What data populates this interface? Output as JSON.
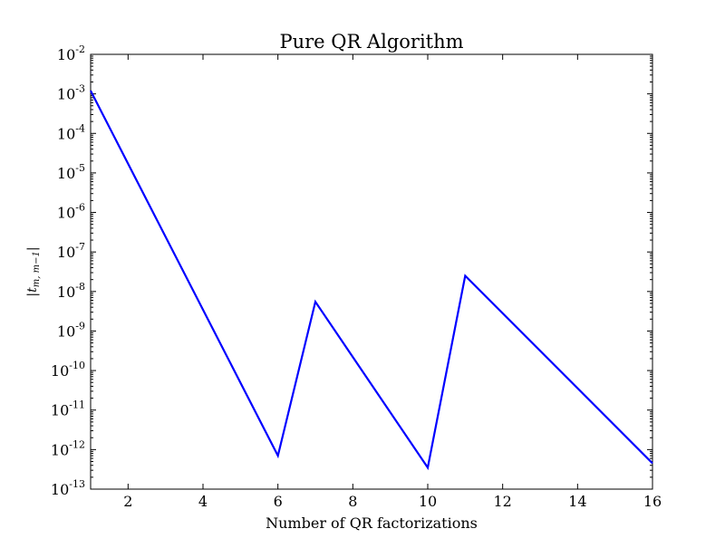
{
  "chart_data": {
    "type": "line",
    "title": "Pure QR Algorithm",
    "xlabel": "Number of QR factorizations",
    "ylabel": "|t_{m,m-1}|",
    "ylabel_parts": {
      "main": "|t",
      "sub": "m, m−1",
      "close": "|"
    },
    "xlim": [
      1,
      16
    ],
    "ylim": [
      1e-13,
      0.01
    ],
    "yscale": "log",
    "grid": false,
    "legend": "none",
    "x_ticks": [
      {
        "value": 2,
        "label": "2"
      },
      {
        "value": 4,
        "label": "4"
      },
      {
        "value": 6,
        "label": "6"
      },
      {
        "value": 8,
        "label": "8"
      },
      {
        "value": 10,
        "label": "10"
      },
      {
        "value": 12,
        "label": "12"
      },
      {
        "value": 14,
        "label": "14"
      },
      {
        "value": 16,
        "label": "16"
      }
    ],
    "y_ticks": [
      {
        "exp": -13,
        "base": "10",
        "sup": "-13"
      },
      {
        "exp": -12,
        "base": "10",
        "sup": "-12"
      },
      {
        "exp": -11,
        "base": "10",
        "sup": "-11"
      },
      {
        "exp": -10,
        "base": "10",
        "sup": "-10"
      },
      {
        "exp": -9,
        "base": "10",
        "sup": "-9"
      },
      {
        "exp": -8,
        "base": "10",
        "sup": "-8"
      },
      {
        "exp": -7,
        "base": "10",
        "sup": "-7"
      },
      {
        "exp": -6,
        "base": "10",
        "sup": "-6"
      },
      {
        "exp": -5,
        "base": "10",
        "sup": "-5"
      },
      {
        "exp": -4,
        "base": "10",
        "sup": "-4"
      },
      {
        "exp": -3,
        "base": "10",
        "sup": "-3"
      },
      {
        "exp": -2,
        "base": "10",
        "sup": "-2"
      }
    ],
    "series": [
      {
        "color": "#0000ff",
        "x": [
          1,
          6,
          7,
          10,
          11,
          16
        ],
        "y": [
          0.0012,
          7e-13,
          5.5e-09,
          3.5e-13,
          2.5e-08,
          4.5e-13
        ]
      }
    ]
  }
}
